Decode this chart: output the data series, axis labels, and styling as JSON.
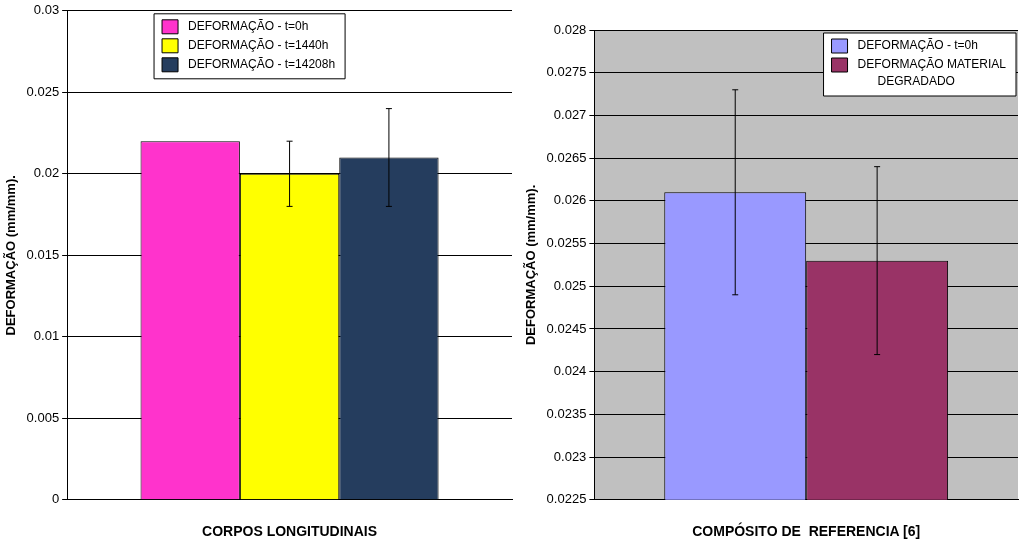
{
  "chart_data": [
    {
      "type": "bar",
      "xlabel": "CORPOS LONGITUDINAIS",
      "ylabel": "DEFORMAÇÃO (mm/mm).",
      "categories": [
        null
      ],
      "series": [
        {
          "name": "DEFORMAÇÃO - t=0h",
          "color": "#ff33cc",
          "values": [
            0.022
          ]
        },
        {
          "name": "DEFORMAÇÃO - t=1440h",
          "color": "#ffff00",
          "values": [
            0.02
          ],
          "errors": [
            [
              0.018,
              0.022
            ]
          ]
        },
        {
          "name": "DEFORMAÇÃO - t=14208h",
          "color": "#253d5e",
          "values": [
            0.021
          ],
          "errors": [
            [
              0.018,
              0.024
            ]
          ]
        }
      ],
      "ylim": [
        0,
        0.03
      ],
      "yticks": [
        0,
        0.005,
        0.01,
        0.015,
        0.02,
        0.025,
        0.03
      ],
      "grid": "y",
      "legend": "top"
    },
    {
      "type": "bar",
      "xlabel": "COMPÓSITO DE  REFERENCIA [6]",
      "ylabel": "DEFORMAÇÃO (mm/mm).",
      "categories": [
        null
      ],
      "series": [
        {
          "name": "DEFORMAÇÃO - t=0h",
          "color": "#9999ff",
          "values": [
            0.0261
          ],
          "errors": [
            [
              0.0249,
              0.0273
            ]
          ]
        },
        {
          "name": "DEFORMAÇÃO MATERIAL DEGRADADO",
          "color": "#993366",
          "values": [
            0.0253
          ],
          "errors": [
            [
              0.0242,
              0.0264
            ]
          ]
        }
      ],
      "ylim": [
        0.0225,
        0.028
      ],
      "yticks": [
        0.0225,
        0.023,
        0.0235,
        0.024,
        0.0245,
        0.025,
        0.0255,
        0.026,
        0.0265,
        0.027,
        0.0275,
        0.028
      ],
      "grid": "y",
      "legend": "top right"
    }
  ]
}
